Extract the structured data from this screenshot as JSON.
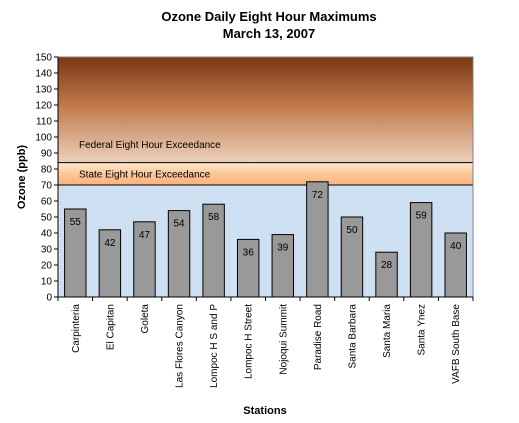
{
  "chart_data": {
    "type": "bar",
    "title": "Ozone Daily Eight Hour Maximums",
    "subtitle": "March 13, 2007",
    "xlabel": "Stations",
    "ylabel": "Ozone (ppb)",
    "ylim": [
      0,
      150
    ],
    "ytick_step": 10,
    "grid": false,
    "legend": "none",
    "categories": [
      "Carpinteria",
      "El Capitan",
      "Goleta",
      "Las Flores Canyon",
      "Lompoc H S and P",
      "Lompoc H Street",
      "Nojoqui Summit",
      "Paradise Road",
      "Santa Barbara",
      "Santa Maria",
      "Santa Ynez",
      "VAFB South Base"
    ],
    "values": [
      55,
      42,
      47,
      54,
      58,
      36,
      39,
      72,
      50,
      28,
      59,
      40
    ],
    "bar_color": "#999999",
    "bands": [
      {
        "label": "Federal Eight Hour Exceedance",
        "from": 84,
        "to": 150,
        "color_top": "#7a3714",
        "color_bottom": "#e9c7ad"
      },
      {
        "label": "State Eight Hour Exceedance",
        "from": 70,
        "to": 84,
        "color_top": "#fde6c9",
        "color_bottom": "#fbb67d"
      }
    ],
    "background_below": {
      "from": 0,
      "to": 70,
      "color": "#cfe1f4"
    }
  }
}
